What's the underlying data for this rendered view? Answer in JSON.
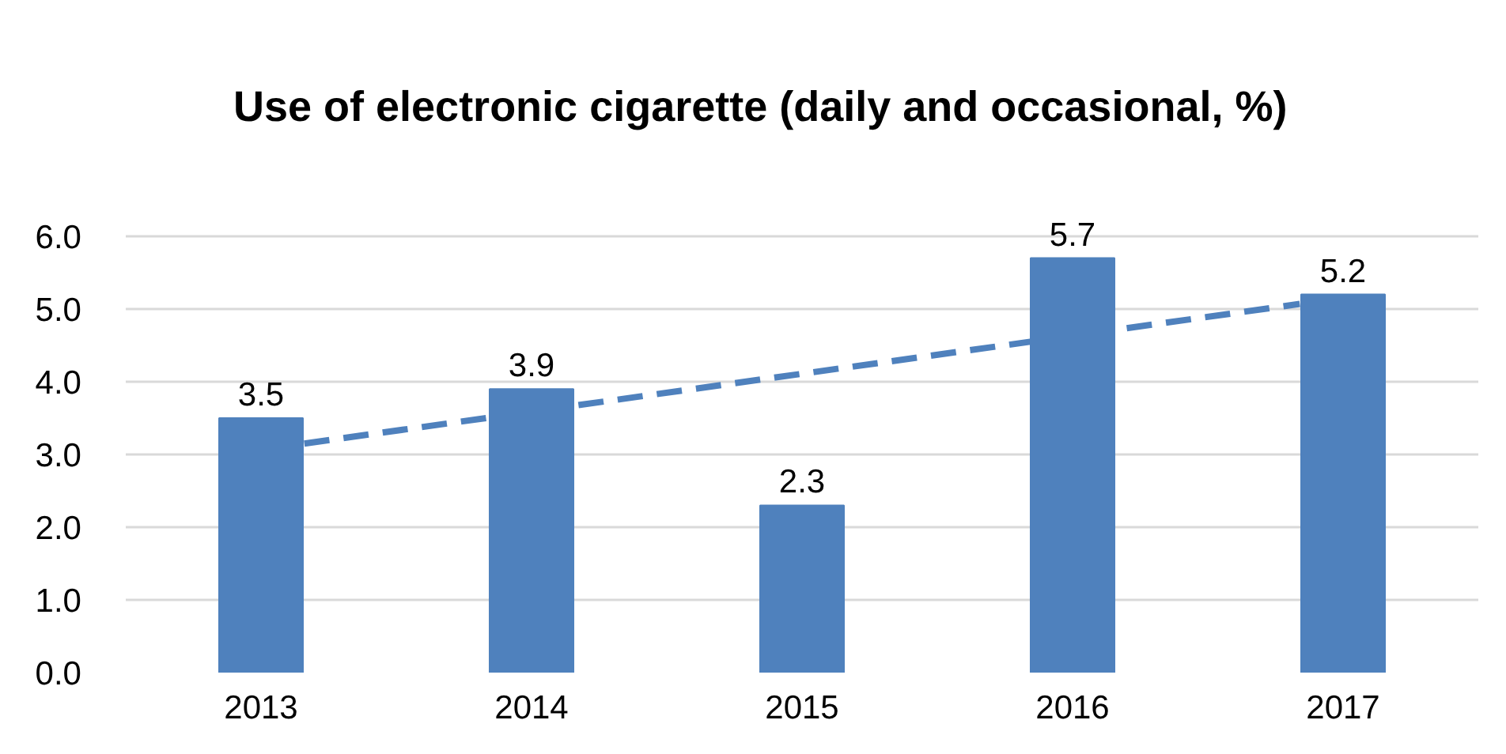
{
  "chart_data": {
    "type": "bar",
    "title": "Use of electronic cigarette (daily and occasional, %)",
    "x": [
      2013,
      2014,
      2015,
      2016,
      2017
    ],
    "series": [
      {
        "color": "#4f81bd",
        "values": [
          3.5,
          3.9,
          2.3,
          5.7,
          5.2
        ],
        "value_labels": [
          "3.5",
          "3.9",
          "2.3",
          "5.7",
          "5.2"
        ]
      },
      {
        "type": "line",
        "color": "#4f81bd",
        "x": [
          2013.16,
          2016.84
        ],
        "values": [
          3.15,
          5.07
        ],
        "line_style": "dashed"
      }
    ],
    "xlim": [
      2012.5,
      2017.5
    ],
    "xticks": [
      2013,
      2014,
      2015,
      2016,
      2017
    ],
    "ylim": [
      0,
      6
    ],
    "yticks": [
      {
        "value": 0,
        "label": "0.0"
      },
      {
        "value": 1,
        "label": "1.0"
      },
      {
        "value": 2,
        "label": "2.0"
      },
      {
        "value": 3,
        "label": "3.0"
      },
      {
        "value": 4,
        "label": "4.0"
      },
      {
        "value": 5,
        "label": "5.0"
      },
      {
        "value": 6,
        "label": "6.0"
      }
    ],
    "grid": "y"
  }
}
